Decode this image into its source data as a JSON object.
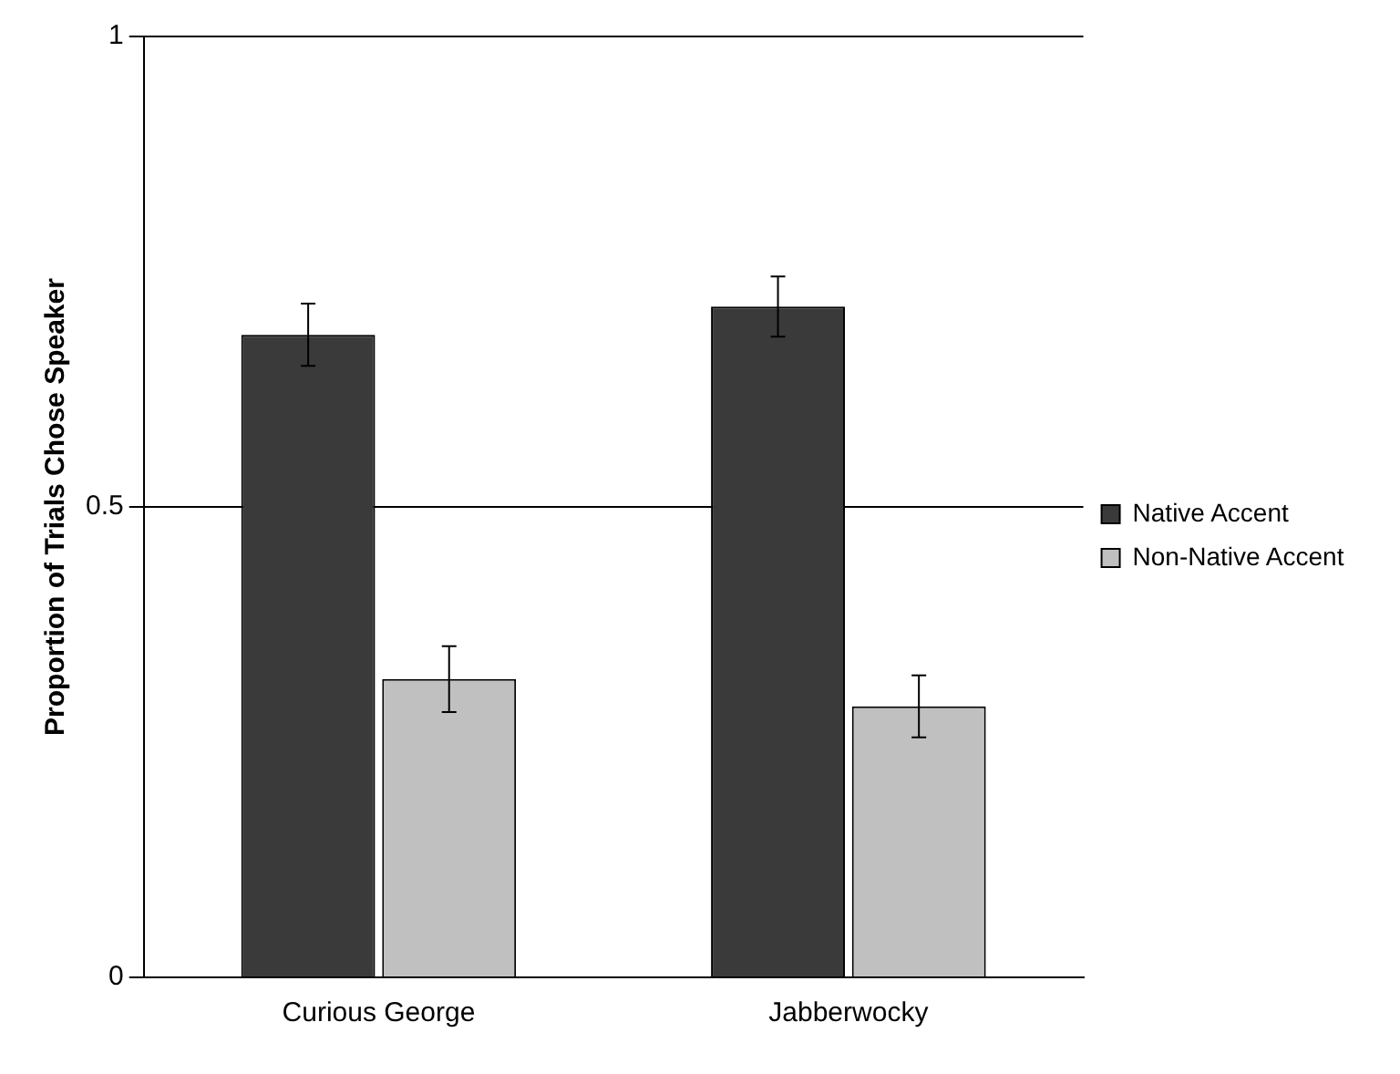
{
  "chart_data": {
    "type": "bar",
    "ylabel": "Proportion of Trials Chose Speaker",
    "categories": [
      "Curious George",
      "Jabberwocky"
    ],
    "series": [
      {
        "name": "Native Accent",
        "color": "#3a3a3a",
        "values": [
          0.683,
          0.713
        ],
        "errors": [
          0.033,
          0.032
        ]
      },
      {
        "name": "Non-Native Accent",
        "color": "#c0c0c0",
        "values": [
          0.317,
          0.288
        ],
        "errors": [
          0.035,
          0.033
        ]
      }
    ],
    "ylim": [
      0,
      1
    ],
    "yticks": [
      0,
      0.5,
      1
    ],
    "grid": "y",
    "legend": "right"
  }
}
